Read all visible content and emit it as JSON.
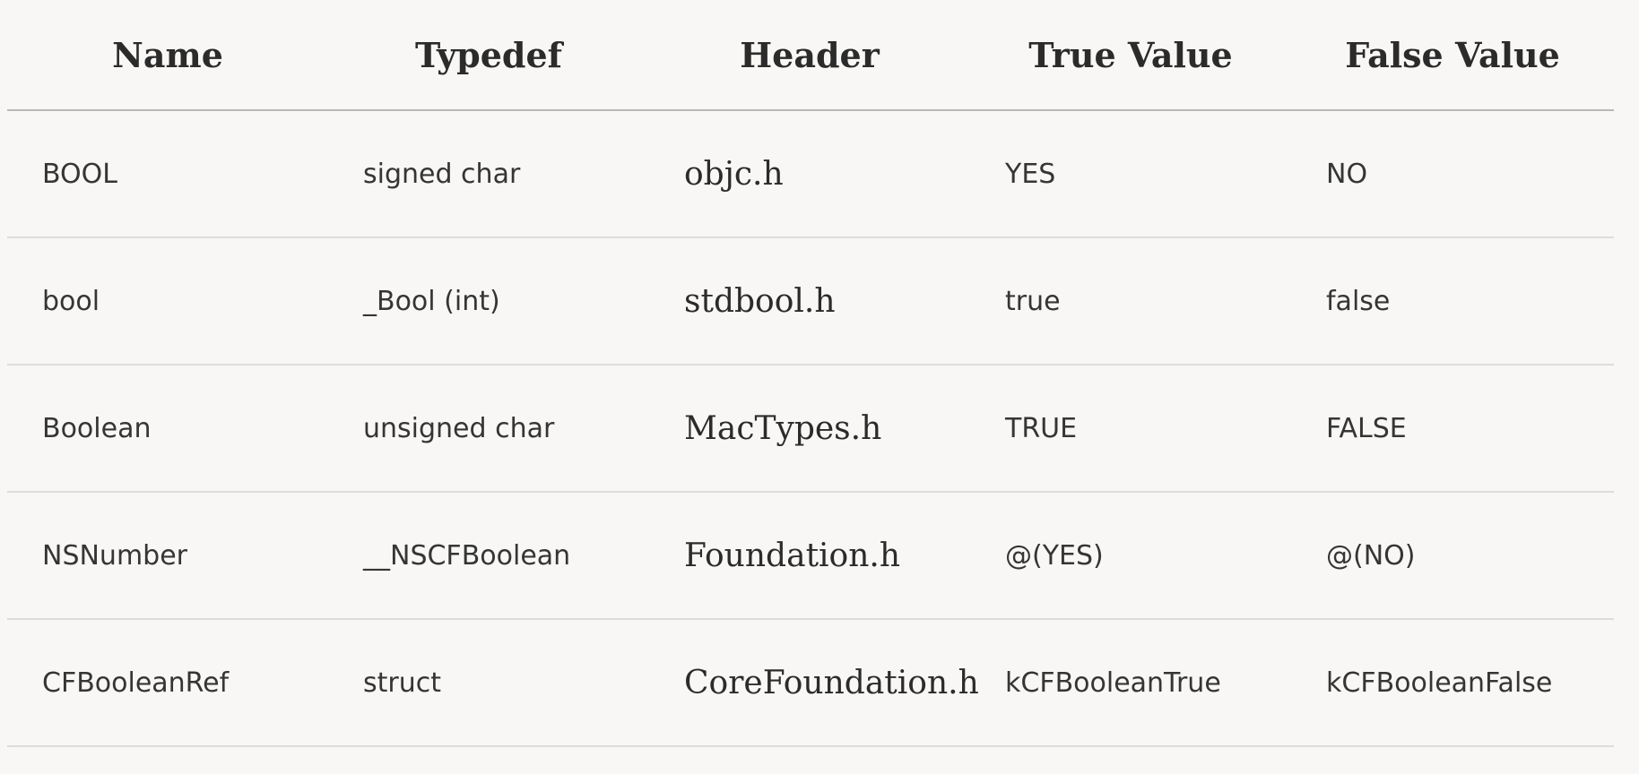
{
  "table": {
    "columns": [
      "Name",
      "Typedef",
      "Header",
      "True Value",
      "False Value"
    ],
    "rows": [
      [
        "BOOL",
        "signed char",
        "objc.h",
        "YES",
        "NO"
      ],
      [
        "bool",
        "_Bool (int)",
        "stdbool.h",
        "true",
        "false"
      ],
      [
        "Boolean",
        "unsigned char",
        "MacTypes.h",
        "TRUE",
        "FALSE"
      ],
      [
        "NSNumber",
        "__NSCFBoolean",
        "Foundation.h",
        "@(YES)",
        "@(NO)"
      ],
      [
        "CFBooleanRef",
        "struct",
        "CoreFoundation.h",
        "kCFBooleanTrue",
        "kCFBooleanFalse"
      ]
    ]
  }
}
